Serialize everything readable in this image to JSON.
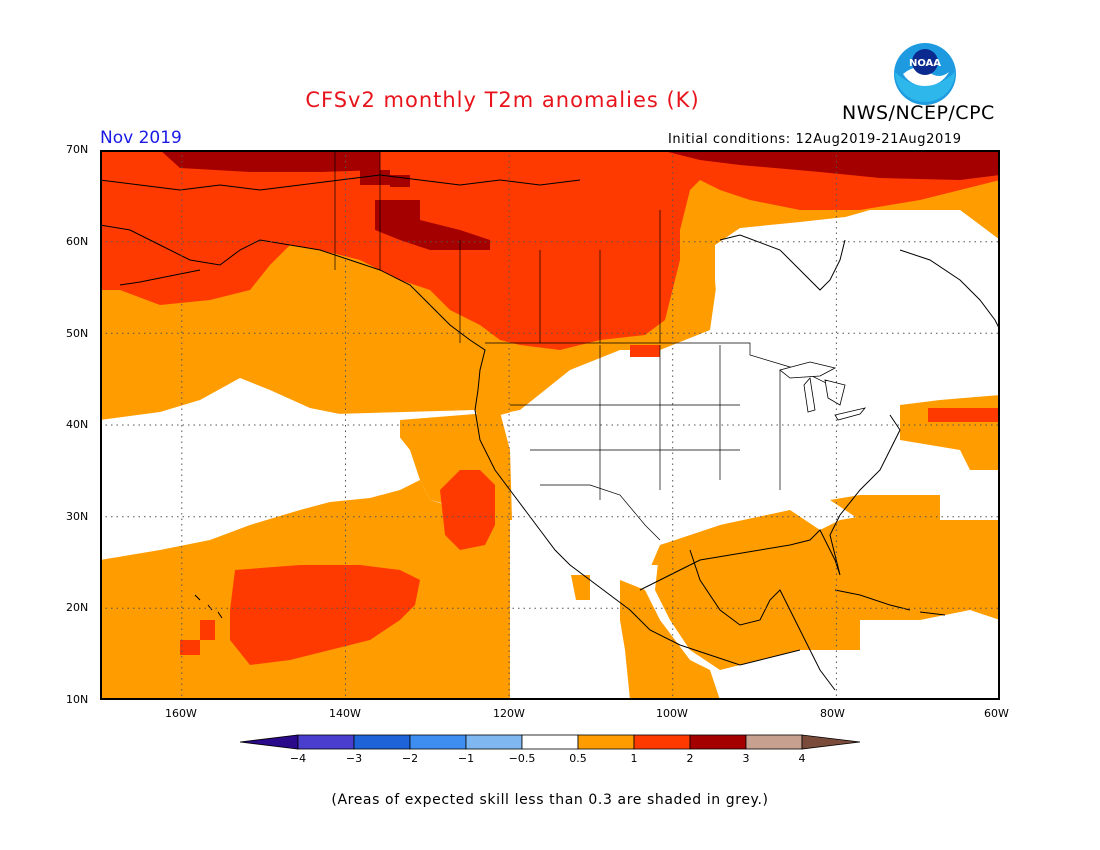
{
  "header": {
    "title": "CFSv2 monthly T2m anomalies (K)",
    "agency": "NWS/NCEP/CPC",
    "logo_text": "NOAA",
    "month": "Nov 2019",
    "initial_conditions": "Initial conditions: 12Aug2019-21Aug2019"
  },
  "map": {
    "projection": "latitude-longitude",
    "lat_ticks": [
      "70N",
      "60N",
      "50N",
      "40N",
      "30N",
      "20N",
      "10N"
    ],
    "lon_ticks": [
      "160W",
      "140W",
      "120W",
      "100W",
      "80W",
      "60W"
    ],
    "gridlines": "dotted",
    "anomaly_regions": [
      {
        "category": "+2 to +3 K",
        "area": "northern Canada and Arctic Ocean"
      },
      {
        "category": "+2 to +3 K",
        "area": "northern Yukon / Northwest Territories"
      },
      {
        "category": "+1 to +2 K",
        "area": "Alaska, western and central Canada, Gulf of Alaska"
      },
      {
        "category": "+1 to +2 K",
        "area": "Pacific near Hawaii, 13N-23N 160W-135W"
      },
      {
        "category": "+1 to +2 K",
        "area": "Pacific off Baja California, 26N-33N"
      },
      {
        "category": "+1 to +2 K",
        "area": "small patches northern Plains and Nova Scotia"
      },
      {
        "category": "+0.5 to +1 K",
        "area": "North Pacific, US West Coast, northern US, Gulf of Mexico, Caribbean, western Atlantic"
      },
      {
        "category": "-0.5 to +0.5 K",
        "area": "most of contiguous US, Mexico, eastern Canada, central Pacific 31N-41N"
      }
    ]
  },
  "colorbar": {
    "labels": [
      "−4",
      "−3",
      "−2",
      "−1",
      "−0.5",
      "0.5",
      "1",
      "2",
      "3",
      "4"
    ],
    "colors": [
      "#2a0a8a",
      "#4a3ecf",
      "#1f63d8",
      "#3e8ef2",
      "#7fb8f0",
      "#ffffff",
      "#ff9c00",
      "#ff3a00",
      "#a50000",
      "#c8a090",
      "#7a4a3a"
    ]
  },
  "footnote": "(Areas of expected skill less than 0.3 are shaded in grey.)"
}
